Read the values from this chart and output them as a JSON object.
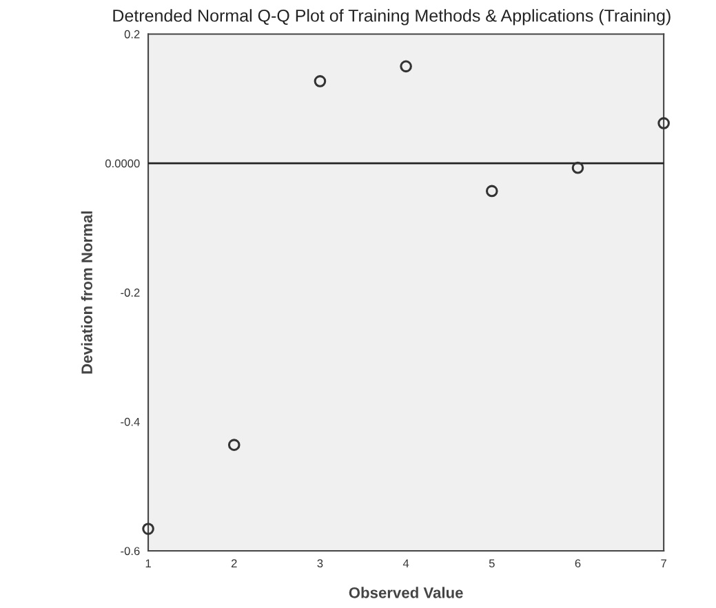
{
  "chart_data": {
    "type": "scatter",
    "title": "Detrended Normal Q-Q Plot of Training Methods & Applications (Training)",
    "xlabel": "Observed Value",
    "ylabel": "Deviation from Normal",
    "x": [
      1,
      2,
      3,
      4,
      5,
      6,
      7
    ],
    "series": [
      {
        "color": "#333333",
        "values": [
          -0.566,
          -0.436,
          0.127,
          0.15,
          -0.043,
          -0.007,
          0.062
        ]
      }
    ],
    "xlim": [
      1,
      7
    ],
    "xticks": [
      1,
      2,
      3,
      4,
      5,
      6,
      7
    ],
    "ylim": [
      -0.6,
      0.2
    ],
    "yticks": [
      {
        "value": -0.6,
        "label": "-0.6"
      },
      {
        "value": -0.4,
        "label": "-0.4"
      },
      {
        "value": -0.2,
        "label": "-0.2"
      },
      {
        "value": 0,
        "label": "0.0000"
      },
      {
        "value": 0.2,
        "label": "0.2"
      }
    ],
    "ref_lines": [
      {
        "axis": "y",
        "value": 0,
        "color": "#222222"
      }
    ],
    "marker": "circle",
    "grid": false,
    "legend": false
  }
}
